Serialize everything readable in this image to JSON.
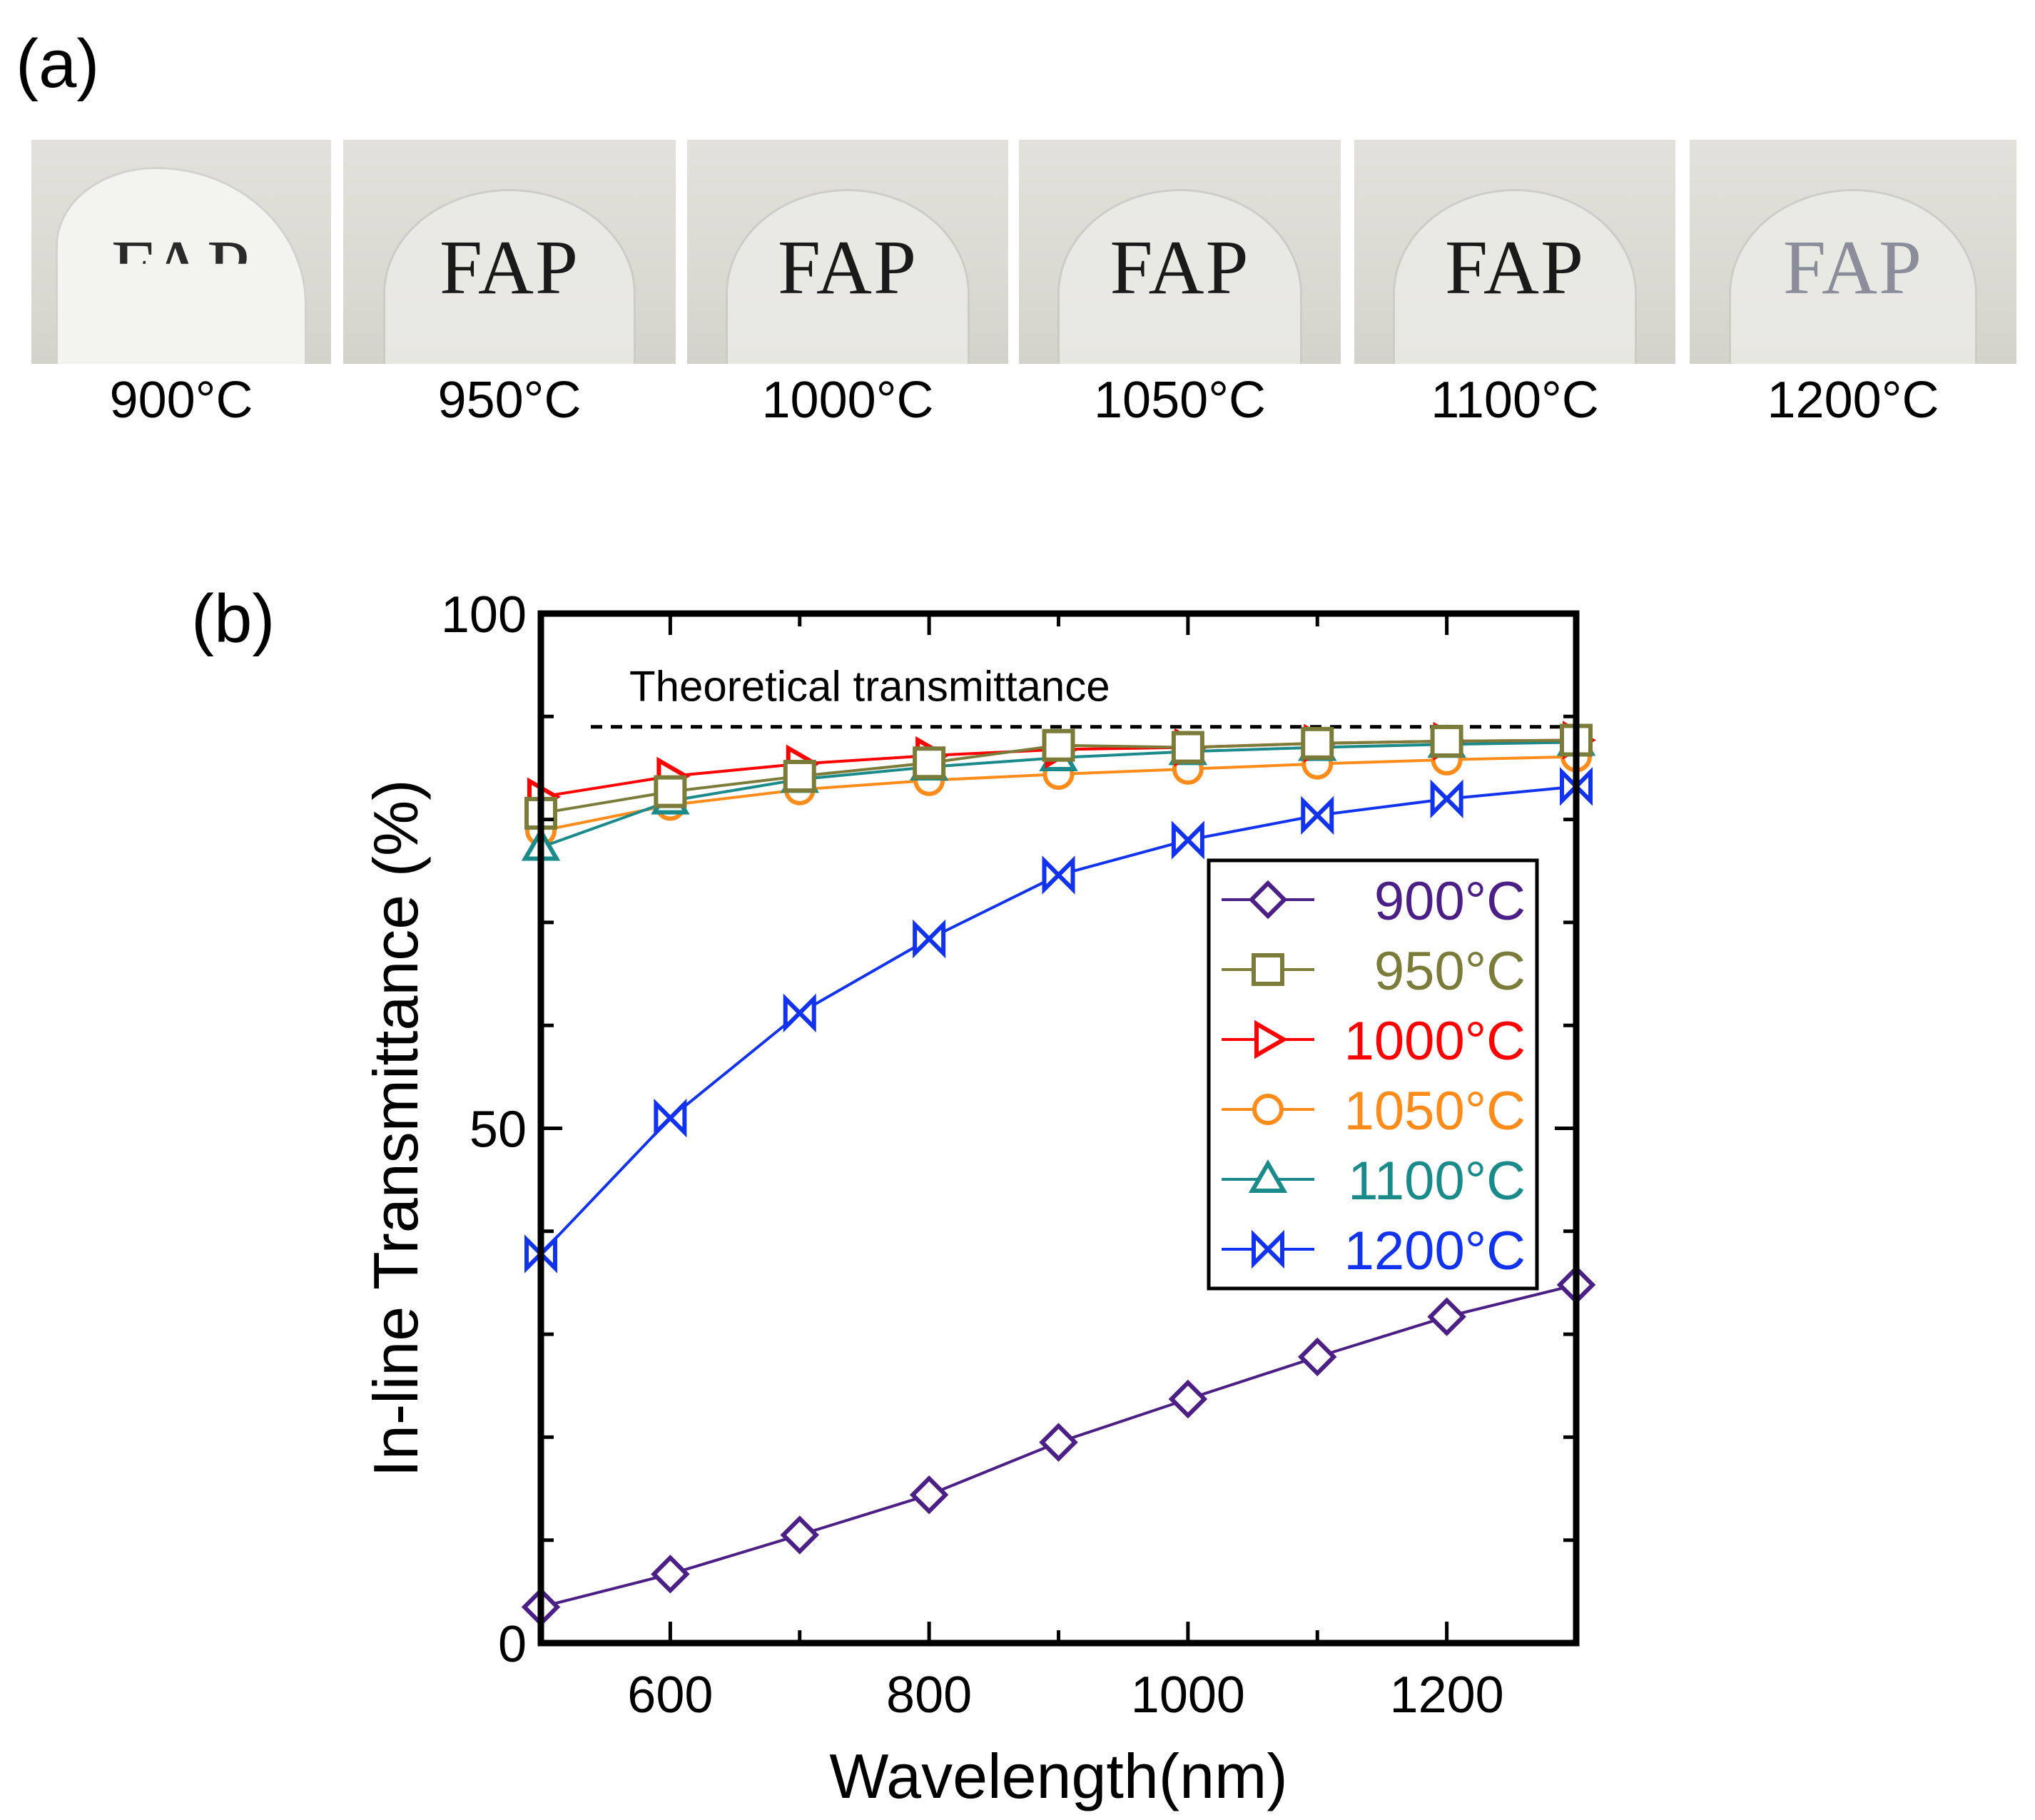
{
  "panel_a": {
    "label": "(a)",
    "photos": [
      {
        "text": "FAP",
        "temp": "900°C"
      },
      {
        "text": "FAP",
        "temp": "950°C"
      },
      {
        "text": "FAP",
        "temp": "1000°C"
      },
      {
        "text": "FAP",
        "temp": "1050°C"
      },
      {
        "text": "FAP",
        "temp": "1100°C"
      },
      {
        "text": "FAP",
        "temp": "1200°C"
      }
    ]
  },
  "panel_b": {
    "label": "(b)"
  },
  "chart_data": {
    "type": "line",
    "title": "",
    "xlabel": "Wavelength(nm)",
    "ylabel": "In-line Transmittance (%)",
    "xlim": [
      500,
      1300
    ],
    "ylim": [
      0,
      100
    ],
    "xticks": [
      600,
      800,
      1000,
      1200
    ],
    "yticks": [
      0,
      50,
      100
    ],
    "grid": false,
    "legend_position": "right-center",
    "reference_line": {
      "label": "Theoretical transmittance",
      "y": 89
    },
    "marker_x": [
      500,
      600,
      700,
      800,
      900,
      1000,
      1100,
      1200,
      1300
    ],
    "series": [
      {
        "name": "900°C",
        "color": "#4b1f86",
        "marker": "diamond",
        "values": [
          3.5,
          6.7,
          10.5,
          14.4,
          19.5,
          23.7,
          27.8,
          31.7,
          34.8
        ]
      },
      {
        "name": "950°C",
        "color": "#7c7c3a",
        "marker": "square",
        "values": [
          80.6,
          82.7,
          84.2,
          85.5,
          87.2,
          87.0,
          87.4,
          87.6,
          87.7
        ]
      },
      {
        "name": "1000°C",
        "color": "#ff0000",
        "marker": "triangle-right",
        "values": [
          82.2,
          84.2,
          85.4,
          86.2,
          86.8,
          87.0,
          87.4,
          87.6,
          87.7
        ]
      },
      {
        "name": "1050°C",
        "color": "#ff8c1a",
        "marker": "circle",
        "values": [
          78.9,
          81.4,
          82.9,
          83.8,
          84.4,
          84.9,
          85.4,
          85.8,
          86.1
        ]
      },
      {
        "name": "1100°C",
        "color": "#1a8a8a",
        "marker": "triangle-up",
        "values": [
          77.3,
          81.8,
          83.9,
          85.1,
          86.0,
          86.6,
          87.0,
          87.3,
          87.5
        ]
      },
      {
        "name": "1200°C",
        "color": "#1133ee",
        "marker": "bowtie",
        "values": [
          37.8,
          51.0,
          61.2,
          68.4,
          74.6,
          78.0,
          80.4,
          82.0,
          83.2
        ]
      }
    ]
  }
}
